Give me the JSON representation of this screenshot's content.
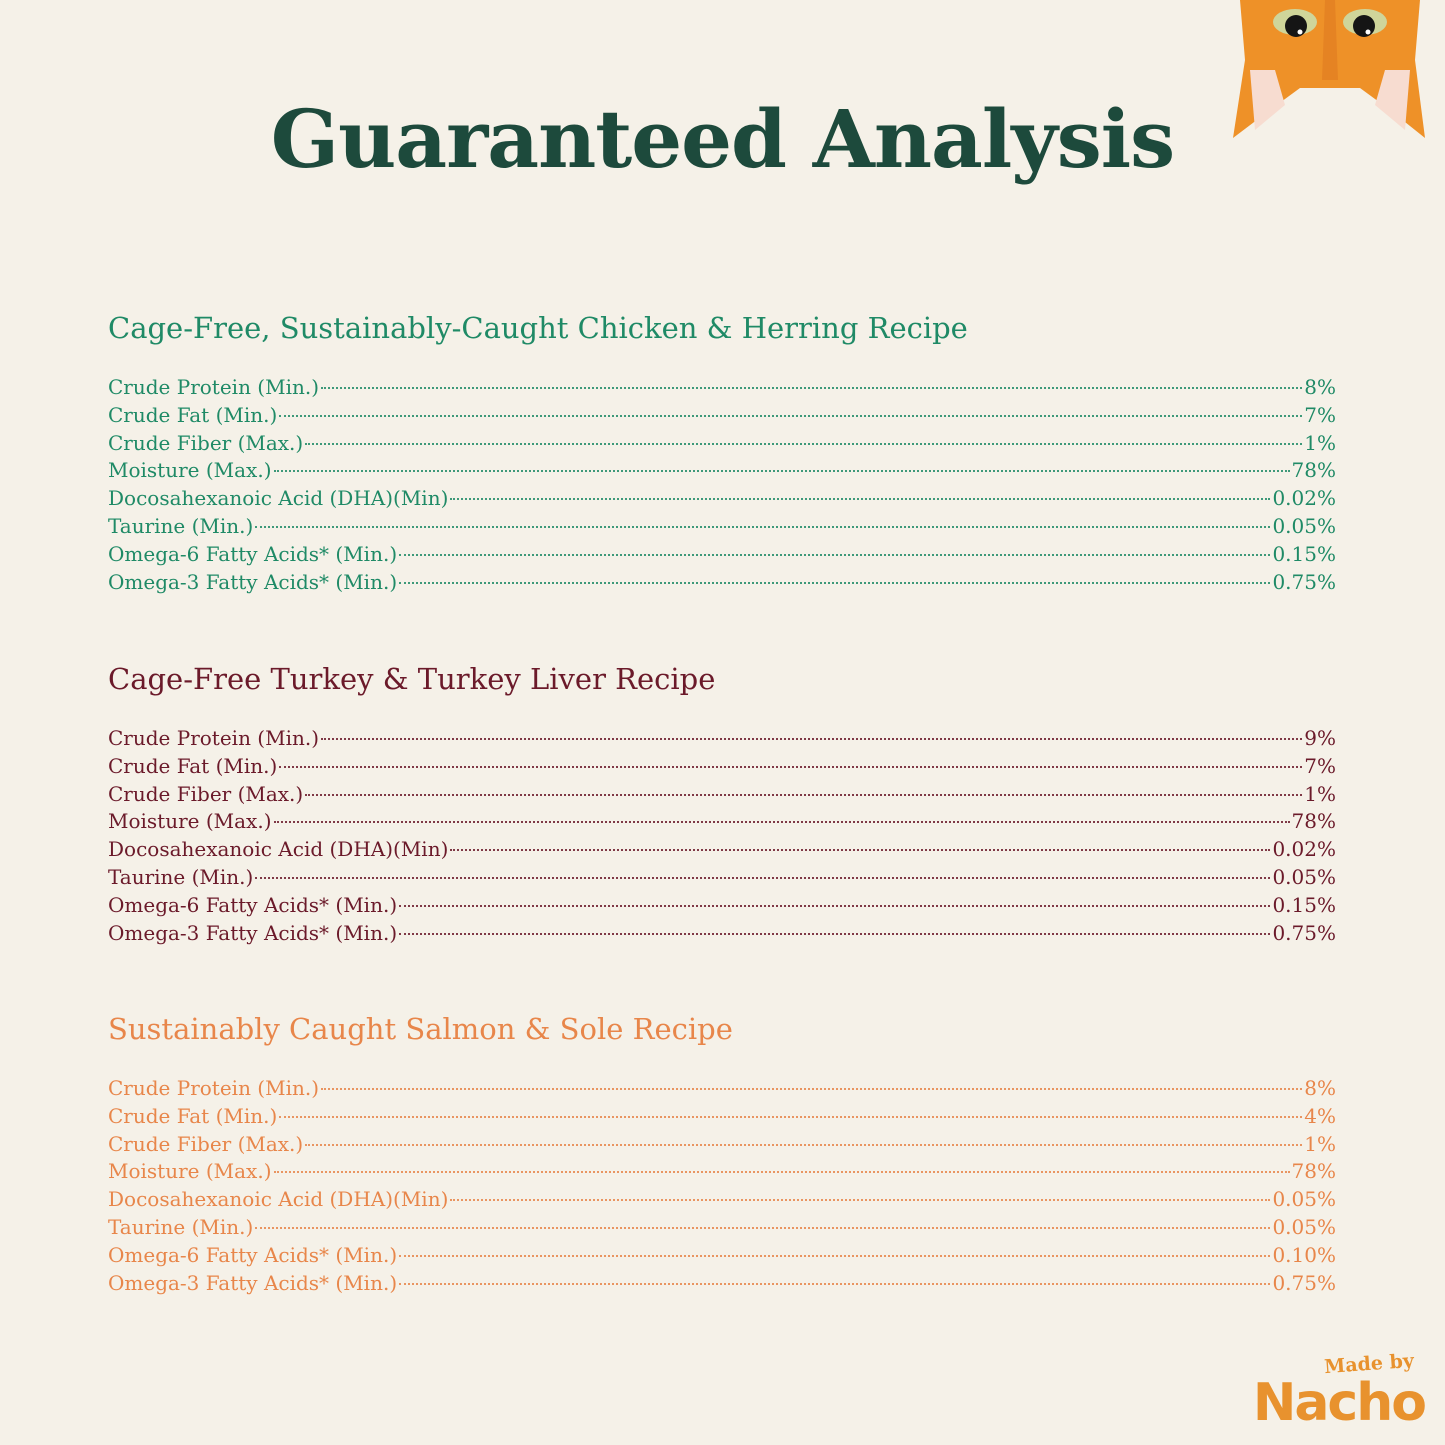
{
  "title": "Guaranteed Analysis",
  "colors": {
    "title": "#1d4a3c",
    "section_1": "#1f8a66",
    "section_2": "#6b1a2a",
    "section_3": "#e8864a",
    "logo": "#e8922e"
  },
  "sections": [
    {
      "heading": "Cage-Free, Sustainably-Caught Chicken & Herring Recipe",
      "rows": [
        {
          "label": "Crude Protein (Min.)",
          "value": "8%"
        },
        {
          "label": "Crude Fat (Min.)",
          "value": "7%"
        },
        {
          "label": "Crude Fiber (Max.)",
          "value": "1%"
        },
        {
          "label": "Moisture (Max.)",
          "value": "78%"
        },
        {
          "label": "Docosahexanoic Acid (DHA)(Min)",
          "value": "0.02%"
        },
        {
          "label": "Taurine (Min.)",
          "value": "0.05%"
        },
        {
          "label": "Omega-6 Fatty Acids* (Min.)",
          "value": "0.15%"
        },
        {
          "label": "Omega-3 Fatty Acids* (Min.)",
          "value": "0.75%"
        }
      ]
    },
    {
      "heading": "Cage-Free Turkey & Turkey Liver Recipe",
      "rows": [
        {
          "label": "Crude Protein (Min.)",
          "value": "9%"
        },
        {
          "label": "Crude Fat (Min.)",
          "value": "7%"
        },
        {
          "label": "Crude Fiber (Max.)",
          "value": "1%"
        },
        {
          "label": "Moisture (Max.)",
          "value": "78%"
        },
        {
          "label": "Docosahexanoic Acid (DHA)(Min)",
          "value": "0.02%"
        },
        {
          "label": "Taurine (Min.)",
          "value": "0.05%"
        },
        {
          "label": "Omega-6 Fatty Acids* (Min.)",
          "value": "0.15%"
        },
        {
          "label": "Omega-3 Fatty Acids* (Min.)",
          "value": "0.75%"
        }
      ]
    },
    {
      "heading": "Sustainably Caught Salmon & Sole Recipe",
      "rows": [
        {
          "label": "Crude Protein (Min.)",
          "value": "8%"
        },
        {
          "label": "Crude Fat (Min.)",
          "value": "4%"
        },
        {
          "label": "Crude Fiber (Max.)",
          "value": "1%"
        },
        {
          "label": "Moisture (Max.)",
          "value": "78%"
        },
        {
          "label": "Docosahexanoic Acid (DHA)(Min)",
          "value": "0.05%"
        },
        {
          "label": "Taurine (Min.)",
          "value": "0.05%"
        },
        {
          "label": "Omega-6 Fatty Acids* (Min.)",
          "value": "0.10%"
        },
        {
          "label": "Omega-3 Fatty Acids* (Min.)",
          "value": "0.75%"
        }
      ]
    }
  ],
  "logo": {
    "tagline": "Made by",
    "brand": "Nacho"
  }
}
